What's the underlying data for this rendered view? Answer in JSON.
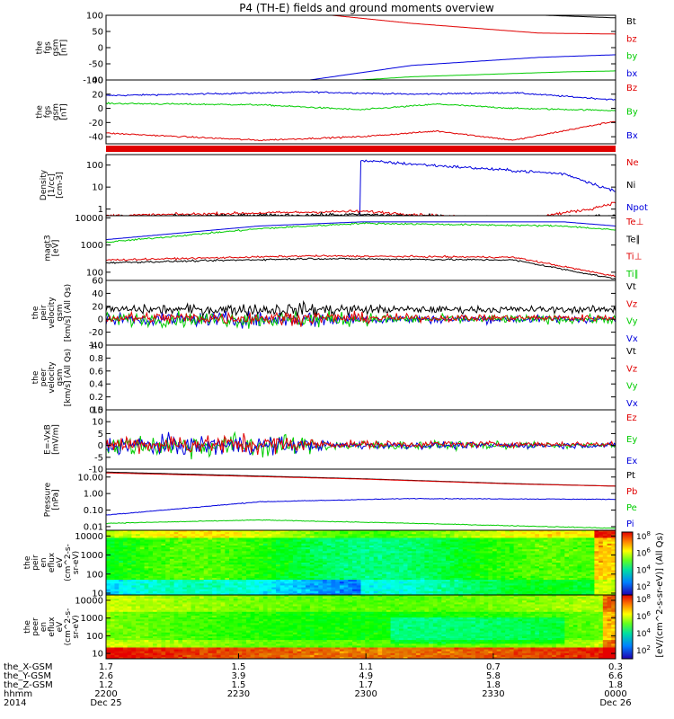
{
  "title": "P4 (TH-E) fields and ground moments overview",
  "chart_data": {
    "type": "line",
    "panels": [
      {
        "id": "fgs-gsm",
        "ylabel": [
          "the",
          "fgs",
          "gsm",
          "[nT]"
        ],
        "ylim": [
          -100,
          100
        ],
        "yticks": [
          "100",
          "50",
          "0",
          "-50",
          "-100"
        ],
        "ytick_values": [
          100,
          50,
          0,
          -50,
          -100
        ],
        "legend": [
          {
            "label": "Bt",
            "color": "#000000"
          },
          {
            "label": "bz",
            "color": "#e00000"
          },
          {
            "label": "by",
            "color": "#00cc00"
          },
          {
            "label": "bx",
            "color": "#0000dd"
          }
        ]
      },
      {
        "id": "fgs-dsl",
        "ylabel": [
          "the",
          "fgs",
          "gsm",
          "[nT]"
        ],
        "ylim": [
          -50,
          40
        ],
        "yticks": [
          "40",
          "20",
          "0",
          "-20",
          "-40"
        ],
        "ytick_values": [
          40,
          20,
          0,
          -20,
          -40
        ],
        "legend": [
          {
            "label": "Bz",
            "color": "#e00000"
          },
          {
            "label": "By",
            "color": "#00cc00"
          },
          {
            "label": "Bx",
            "color": "#0000dd"
          }
        ]
      },
      {
        "id": "density",
        "ylabel": [
          "Density",
          "[1/cc]",
          "[cm-3]"
        ],
        "log": true,
        "ylim": [
          0.5,
          300
        ],
        "yticks": [
          "100",
          "10",
          "1"
        ],
        "ytick_values": [
          100,
          10,
          1
        ],
        "legend": [
          {
            "label": "Ne",
            "color": "#e00000"
          },
          {
            "label": "Ni",
            "color": "#000000"
          },
          {
            "label": "Npot",
            "color": "#0000dd"
          }
        ]
      },
      {
        "id": "temperature",
        "ylabel": [
          "magt3",
          "[eV]"
        ],
        "log": true,
        "ylim": [
          50,
          12000
        ],
        "yticks": [
          "10000",
          "1000",
          "100"
        ],
        "ytick_values": [
          10000,
          1000,
          100
        ],
        "legend": [
          {
            "label": "Te⊥",
            "color": "#e00000"
          },
          {
            "label": "Te∥",
            "color": "#000000"
          },
          {
            "label": "Ti⊥",
            "color": "#e00000"
          },
          {
            "label": "Ti∥",
            "color": "#00cc00"
          }
        ]
      },
      {
        "id": "peir-velocity",
        "ylabel": [
          "the",
          "peir",
          "velocity",
          "gsm",
          "[km/s] (All Qs)"
        ],
        "ylim": [
          -40,
          60
        ],
        "yticks": [
          "60",
          "40",
          "20",
          "0",
          "-20",
          "-40"
        ],
        "ytick_values": [
          60,
          40,
          20,
          0,
          -20,
          -40
        ],
        "legend": [
          {
            "label": "Vt",
            "color": "#000000"
          },
          {
            "label": "Vz",
            "color": "#e00000"
          },
          {
            "label": "Vy",
            "color": "#00cc00"
          },
          {
            "label": "Vx",
            "color": "#0000dd"
          }
        ]
      },
      {
        "id": "peer-velocity",
        "ylabel": [
          "the",
          "peer",
          "velocity",
          "gsm",
          "[km/s] (All Qs)"
        ],
        "ylim": [
          0,
          1
        ],
        "yticks": [
          "1.0",
          "0.8",
          "0.6",
          "0.4",
          "0.2",
          "0.0"
        ],
        "ytick_values": [
          1.0,
          0.8,
          0.6,
          0.4,
          0.2,
          0.0
        ],
        "legend": [
          {
            "label": "Vt",
            "color": "#000000"
          },
          {
            "label": "Vz",
            "color": "#e00000"
          },
          {
            "label": "Vy",
            "color": "#00cc00"
          },
          {
            "label": "Vx",
            "color": "#0000dd"
          }
        ]
      },
      {
        "id": "efield",
        "ylabel": [
          "E=-VxB",
          "[mV/m]"
        ],
        "ylim": [
          -10,
          15
        ],
        "yticks": [
          "15",
          "10",
          "5",
          "0",
          "-5",
          "-10"
        ],
        "ytick_values": [
          15,
          10,
          5,
          0,
          -5,
          -10
        ],
        "legend": [
          {
            "label": "Ez",
            "color": "#e00000"
          },
          {
            "label": "Ey",
            "color": "#00cc00"
          },
          {
            "label": "Ex",
            "color": "#0000dd"
          }
        ]
      },
      {
        "id": "pressure",
        "ylabel": [
          "Pressure",
          "[nPa]"
        ],
        "log": true,
        "ylim": [
          0.006,
          30
        ],
        "yticks": [
          "10.00",
          "1.00",
          "0.10",
          "0.01"
        ],
        "ytick_values": [
          10,
          1,
          0.1,
          0.01
        ],
        "legend": [
          {
            "label": "Pt",
            "color": "#000000"
          },
          {
            "label": "Pb",
            "color": "#e00000"
          },
          {
            "label": "Pe",
            "color": "#00cc00"
          },
          {
            "label": "Pi",
            "color": "#0000dd"
          }
        ]
      },
      {
        "id": "peir-eflux",
        "type": "heatmap",
        "ylabel": [
          "the",
          "peir",
          "en",
          "eflux",
          "eV",
          "(cm^2-s-",
          "sr-eV)"
        ],
        "log": true,
        "ylim": [
          8,
          20000
        ],
        "yticks": [
          "10000",
          "1000",
          "100",
          "10"
        ],
        "ytick_values": [
          10000,
          1000,
          100,
          10
        ]
      },
      {
        "id": "peer-eflux",
        "type": "heatmap",
        "ylabel": [
          "the",
          "peer",
          "en",
          "eflux",
          "eV",
          "(cm^2-s-",
          "sr-eV)"
        ],
        "log": true,
        "ylim": [
          5,
          20000
        ],
        "yticks": [
          "10000",
          "1000",
          "100",
          "10"
        ],
        "ytick_values": [
          10000,
          1000,
          100,
          10
        ]
      }
    ],
    "colorbar_label": "[eV/(cm^2-s-sr-eV)] (All Qs)",
    "colorbar_ticks": [
      "10^8",
      "10^6",
      "10^4",
      "10^2"
    ],
    "x_tick_rows": [
      {
        "label": "the_X-GSM",
        "values": [
          "1.7",
          "1.5",
          "1.1",
          "0.7",
          "0.3"
        ]
      },
      {
        "label": "the_Y-GSM",
        "values": [
          "2.6",
          "3.9",
          "4.9",
          "5.8",
          "6.6"
        ]
      },
      {
        "label": "the_Z-GSM",
        "values": [
          "1.2",
          "1.5",
          "1.7",
          "1.8",
          "1.8"
        ]
      },
      {
        "label": "hhmm",
        "values": [
          "2200",
          "2230",
          "2300",
          "2330",
          "0000"
        ]
      },
      {
        "label": "2014",
        "values": [
          "Dec 25",
          "",
          "",
          "",
          "Dec 26"
        ]
      }
    ]
  }
}
